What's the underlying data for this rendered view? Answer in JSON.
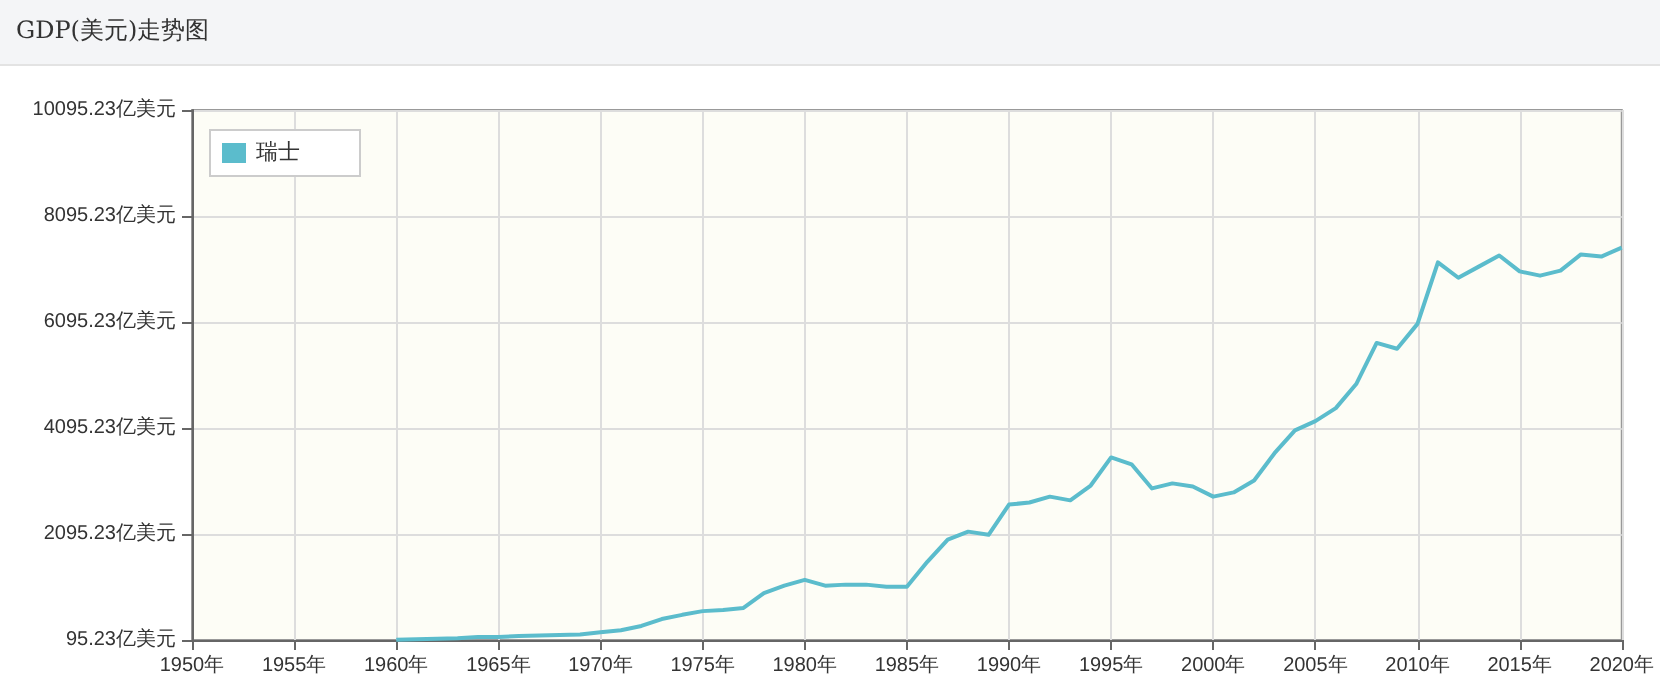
{
  "chart_data": {
    "type": "line",
    "title": "GDP(美元)走势图",
    "x": [
      1960,
      1961,
      1962,
      1963,
      1964,
      1965,
      1966,
      1967,
      1968,
      1969,
      1970,
      1971,
      1972,
      1973,
      1974,
      1975,
      1976,
      1977,
      1978,
      1979,
      1980,
      1981,
      1982,
      1983,
      1984,
      1985,
      1986,
      1987,
      1988,
      1989,
      1990,
      1991,
      1992,
      1993,
      1994,
      1995,
      1996,
      1997,
      1998,
      1999,
      2000,
      2001,
      2002,
      2003,
      2004,
      2005,
      2006,
      2007,
      2008,
      2009,
      2010,
      2011,
      2012,
      2013,
      2014,
      2015,
      2016,
      2017,
      2018,
      2019,
      2020
    ],
    "series": [
      {
        "name": "瑞士",
        "color": "#5bbccc",
        "values": [
          100,
          110,
          120,
          130,
          150,
          150,
          170,
          180,
          190,
          200,
          240,
          280,
          360,
          490,
          570,
          640,
          660,
          700,
          980,
          1120,
          1230,
          1120,
          1140,
          1140,
          1100,
          1100,
          1570,
          1990,
          2140,
          2080,
          2650,
          2690,
          2800,
          2730,
          3010,
          3540,
          3410,
          2955,
          3050,
          2990,
          2800,
          2880,
          3105,
          3620,
          4050,
          4225,
          4470,
          4925,
          5700,
          5590,
          6060,
          7220,
          6930,
          7140,
          7350,
          7050,
          6970,
          7065,
          7370,
          7330,
          7500
        ]
      }
    ],
    "xlim": [
      1950,
      2020
    ],
    "xticks": [
      {
        "value": 1950,
        "label": "1950年"
      },
      {
        "value": 1955,
        "label": "1955年"
      },
      {
        "value": 1960,
        "label": "1960年"
      },
      {
        "value": 1965,
        "label": "1965年"
      },
      {
        "value": 1970,
        "label": "1970年"
      },
      {
        "value": 1975,
        "label": "1975年"
      },
      {
        "value": 1980,
        "label": "1980年"
      },
      {
        "value": 1985,
        "label": "1985年"
      },
      {
        "value": 1990,
        "label": "1990年"
      },
      {
        "value": 1995,
        "label": "1995年"
      },
      {
        "value": 2000,
        "label": "2000年"
      },
      {
        "value": 2005,
        "label": "2005年"
      },
      {
        "value": 2010,
        "label": "2010年"
      },
      {
        "value": 2015,
        "label": "2015年"
      },
      {
        "value": 2020,
        "label": "2020年"
      }
    ],
    "ylim": [
      95.23,
      10095.23
    ],
    "yticks": [
      {
        "value": 95.23,
        "label": "95.23亿美元"
      },
      {
        "value": 2095.23,
        "label": "2095.23亿美元"
      },
      {
        "value": 4095.23,
        "label": "4095.23亿美元"
      },
      {
        "value": 6095.23,
        "label": "6095.23亿美元"
      },
      {
        "value": 8095.23,
        "label": "8095.23亿美元"
      },
      {
        "value": 10095.23,
        "label": "10095.23亿美元"
      }
    ],
    "grid": true,
    "legend": "top left",
    "marker": "none",
    "line_style": "solid"
  }
}
